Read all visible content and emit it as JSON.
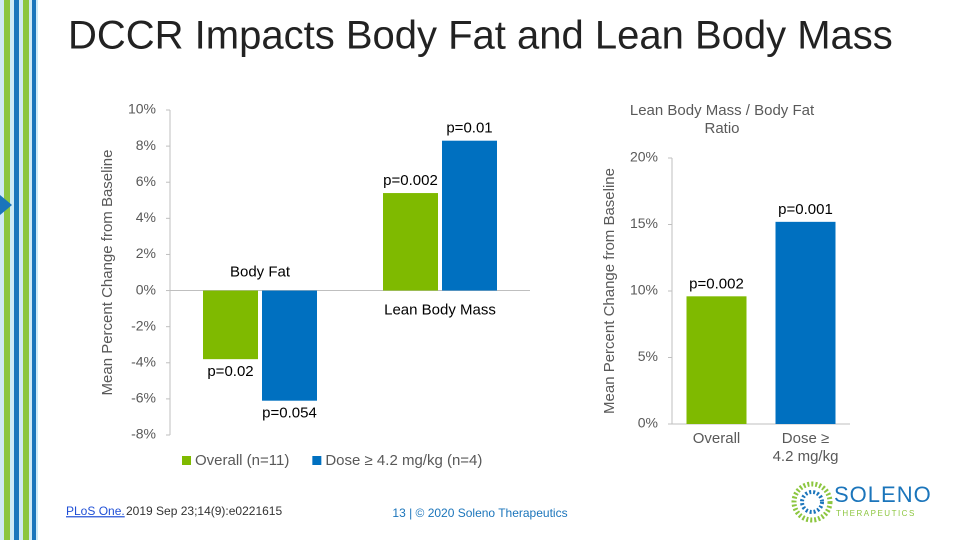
{
  "slide_title": "DCCR Impacts Body Fat and Lean Body Mass",
  "citation": {
    "link": "PLoS One.",
    "text": "2019 Sep 23;14(9):e0221615"
  },
  "footer": "13  |  © 2020 Soleno Therapeutics",
  "logo": {
    "name": "SOLENO",
    "tagline": "THERAPEUTICS"
  },
  "chart_data": [
    {
      "type": "bar",
      "ylabel": "Mean Percent Change from Baseline",
      "categories": [
        "Body Fat",
        "Lean Body Mass"
      ],
      "series": [
        {
          "name": "Overall (n=11)",
          "color": "#7fba00",
          "values": [
            -3.8,
            5.4
          ],
          "annotations": [
            "p=0.02",
            "p=0.002"
          ]
        },
        {
          "name": "Dose ≥ 4.2 mg/kg (n=4)",
          "color": "#0070c0",
          "values": [
            -6.1,
            8.3
          ],
          "annotations": [
            "p=0.054",
            "p=0.01"
          ]
        }
      ],
      "ylim": [
        -8,
        10
      ],
      "yticks": [
        {
          "value": -8,
          "label": "-8%"
        },
        {
          "value": -6,
          "label": "-6%"
        },
        {
          "value": -4,
          "label": "-4%"
        },
        {
          "value": -2,
          "label": "-2%"
        },
        {
          "value": 0,
          "label": "0%"
        },
        {
          "value": 2,
          "label": "2%"
        },
        {
          "value": 4,
          "label": "4%"
        },
        {
          "value": 6,
          "label": "6%"
        },
        {
          "value": 8,
          "label": "8%"
        },
        {
          "value": 10,
          "label": "10%"
        }
      ],
      "legend": "bottom"
    },
    {
      "type": "bar",
      "title": "Lean Body Mass / Body Fat Ratio",
      "ylabel": "Mean Percent Change from Baseline",
      "categories": [
        "Overall",
        "Dose ≥ 4.2 mg/kg"
      ],
      "values": [
        9.6,
        15.2
      ],
      "colors": [
        "#7fba00",
        "#0070c0"
      ],
      "annotations": [
        "p=0.002",
        "p=0.001"
      ],
      "ylim": [
        0,
        20
      ],
      "yticks": [
        {
          "value": 0,
          "label": "0%"
        },
        {
          "value": 5,
          "label": "5%"
        },
        {
          "value": 10,
          "label": "10%"
        },
        {
          "value": 15,
          "label": "15%"
        },
        {
          "value": 20,
          "label": "20%"
        }
      ]
    }
  ]
}
